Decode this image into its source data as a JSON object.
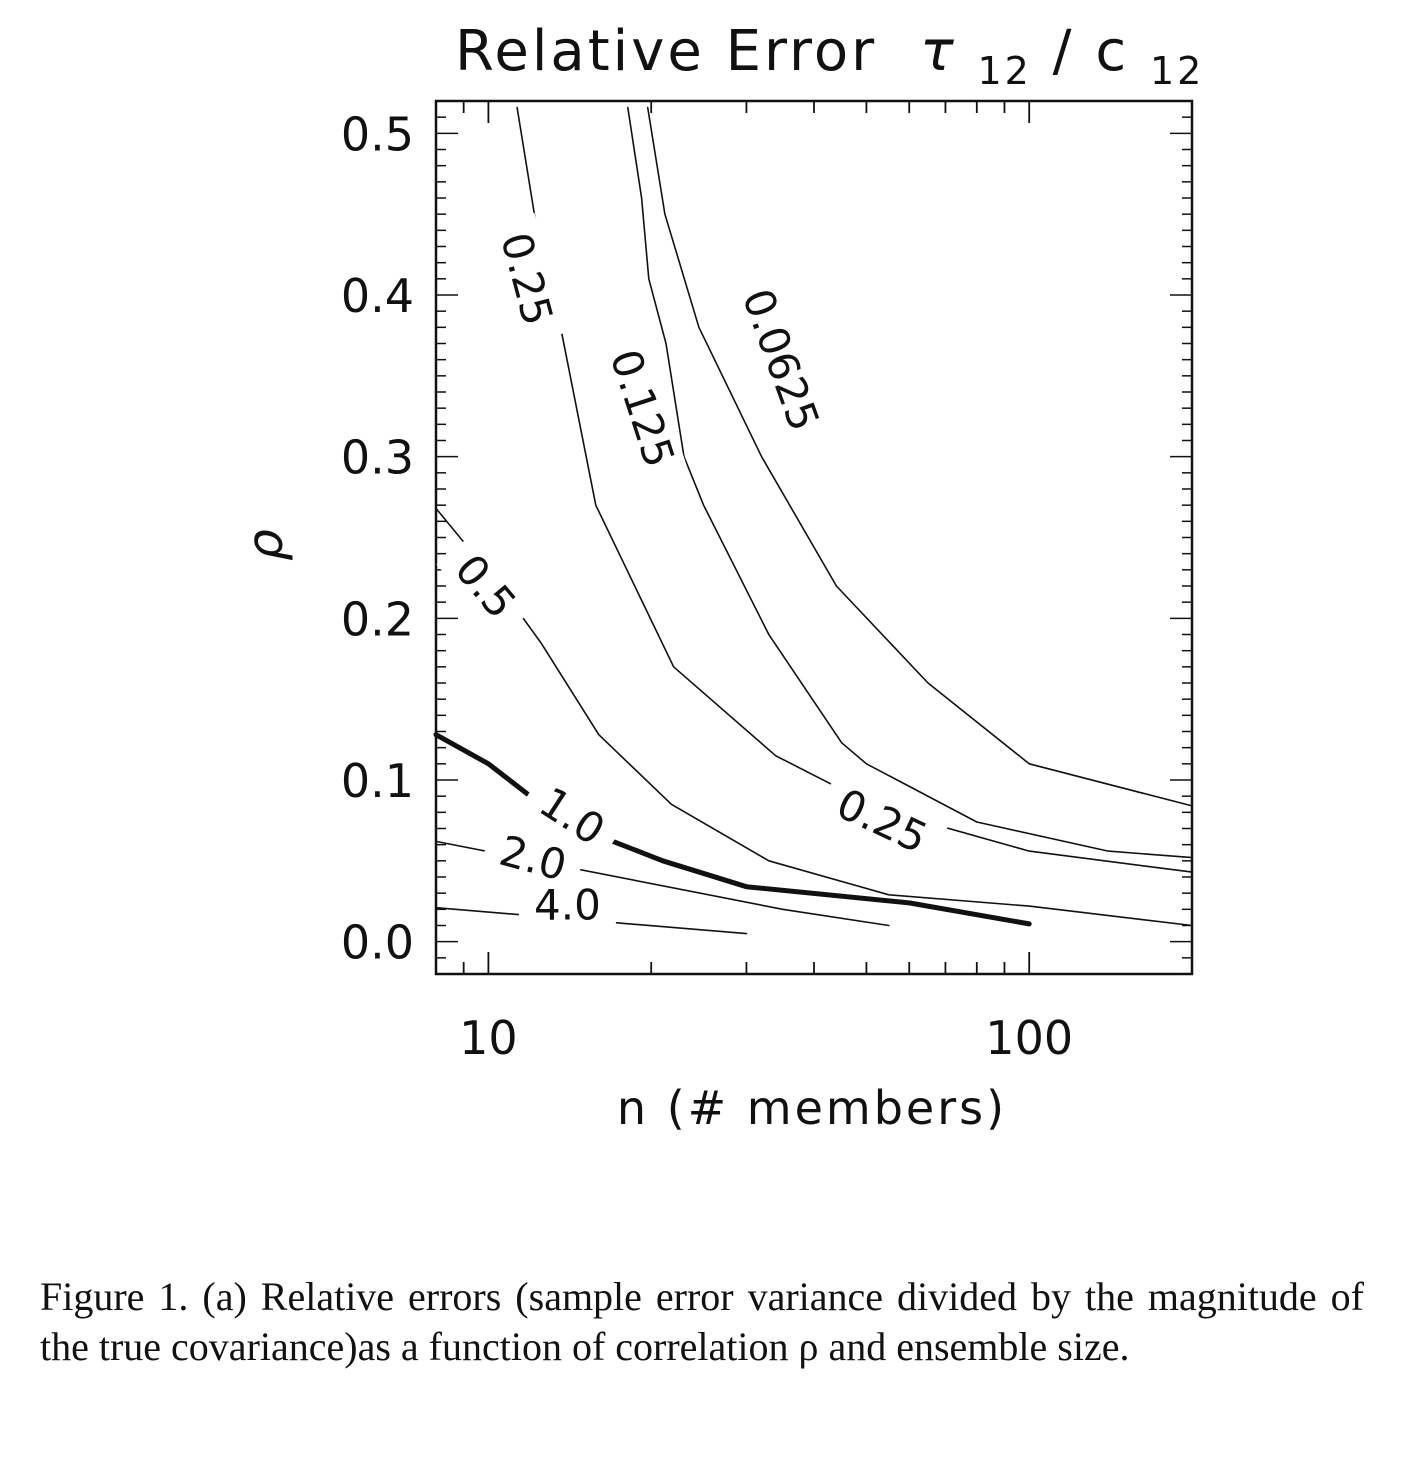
{
  "chart_data": {
    "type": "contour",
    "title": "Relative Error",
    "title_math": {
      "symbol": "τ",
      "sub1": "12",
      "slash": "/",
      "letter": "c",
      "sub2": "12"
    },
    "xlabel": "n (# members)",
    "ylabel": "ρ",
    "xscale": "log",
    "xlim": [
      8,
      200
    ],
    "ylim": [
      -0.02,
      0.52
    ],
    "xticks": [
      {
        "value": 10,
        "label": "10"
      },
      {
        "value": 100,
        "label": "100"
      }
    ],
    "yticks": [
      {
        "value": 0.0,
        "label": "0.0"
      },
      {
        "value": 0.1,
        "label": "0.1"
      },
      {
        "value": 0.2,
        "label": "0.2"
      },
      {
        "value": 0.3,
        "label": "0.3"
      },
      {
        "value": 0.4,
        "label": "0.4"
      },
      {
        "value": 0.5,
        "label": "0.5"
      }
    ],
    "contours": [
      {
        "level": 0.0625,
        "bold": false,
        "points": [
          [
            19.7,
            0.516
          ],
          [
            21.2,
            0.45
          ],
          [
            24.5,
            0.38
          ],
          [
            32,
            0.3
          ],
          [
            44,
            0.22
          ],
          [
            65,
            0.16
          ],
          [
            100,
            0.11
          ],
          [
            200,
            0.084
          ]
        ]
      },
      {
        "level": 0.125,
        "bold": false,
        "points": [
          [
            11.3,
            0.516
          ],
          [
            12.3,
            0.44
          ],
          [
            13.6,
            0.38
          ],
          [
            15.8,
            0.27
          ],
          [
            22,
            0.17
          ],
          [
            34,
            0.115
          ],
          [
            53,
            0.082
          ],
          [
            100,
            0.056
          ],
          [
            200,
            0.043
          ]
        ]
      },
      {
        "level": 0.25,
        "bold": false,
        "points": [
          [
            18.1,
            0.516
          ],
          [
            19.2,
            0.46
          ],
          [
            19.8,
            0.41
          ],
          [
            21.3,
            0.37
          ],
          [
            23,
            0.3
          ],
          [
            25,
            0.27
          ],
          [
            33,
            0.19
          ],
          [
            45,
            0.123
          ],
          [
            50,
            0.11
          ],
          [
            80,
            0.074
          ],
          [
            140,
            0.056
          ],
          [
            200,
            0.052
          ]
        ]
      },
      {
        "level": 0.5,
        "bold": false,
        "points": [
          [
            8,
            0.268
          ],
          [
            10.5,
            0.22
          ],
          [
            12.5,
            0.185
          ],
          [
            16,
            0.128
          ],
          [
            21.8,
            0.085
          ],
          [
            33,
            0.05
          ],
          [
            55,
            0.029
          ],
          [
            100,
            0.022
          ],
          [
            200,
            0.01
          ]
        ]
      },
      {
        "level": 1.0,
        "bold": true,
        "points": [
          [
            8,
            0.128
          ],
          [
            10,
            0.11
          ],
          [
            12.5,
            0.085
          ],
          [
            17,
            0.062
          ],
          [
            21,
            0.05
          ],
          [
            30,
            0.034
          ],
          [
            60,
            0.024
          ],
          [
            100,
            0.011
          ]
        ]
      },
      {
        "level": 2.0,
        "bold": false,
        "points": [
          [
            8,
            0.062
          ],
          [
            35,
            0.02
          ],
          [
            55,
            0.01
          ]
        ]
      },
      {
        "level": 4.0,
        "bold": false,
        "points": [
          [
            8,
            0.021
          ],
          [
            30,
            0.005
          ]
        ]
      }
    ],
    "contour_labels": [
      {
        "text": "0.25",
        "x": 11.8,
        "y": 0.41,
        "angle": 75
      },
      {
        "text": "0.125",
        "x": 19.3,
        "y": 0.33,
        "angle": 72
      },
      {
        "text": "0.0625",
        "x": 34.8,
        "y": 0.36,
        "angle": 70
      },
      {
        "text": "0.5",
        "x": 9.9,
        "y": 0.22,
        "angle": 50
      },
      {
        "text": "0.25",
        "x": 53.5,
        "y": 0.075,
        "angle": 25
      },
      {
        "text": "1.0",
        "x": 14.3,
        "y": 0.078,
        "angle": 33
      },
      {
        "text": "2.0",
        "x": 12.1,
        "y": 0.052,
        "angle": 15
      },
      {
        "text": "4.0",
        "x": 14.0,
        "y": 0.023,
        "angle": 0
      }
    ]
  },
  "caption": "Figure 1. (a) Relative errors (sample error variance divided by the magnitude of the true covariance)as a function of correlation ρ and ensemble size."
}
